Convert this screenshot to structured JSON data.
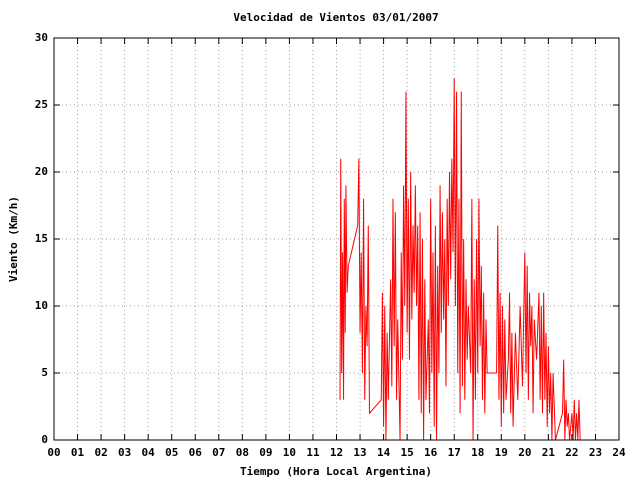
{
  "chart_data": {
    "type": "line",
    "title": "Velocidad de Vientos 03/01/2007",
    "x_label": "Tiempo (Hora Local Argentina)",
    "y_label": "Viento (Km/h)",
    "grid": true,
    "xlim": [
      0,
      24
    ],
    "xticks": [
      {
        "value": 0,
        "label": "00"
      },
      {
        "value": 1,
        "label": "01"
      },
      {
        "value": 2,
        "label": "02"
      },
      {
        "value": 3,
        "label": "03"
      },
      {
        "value": 4,
        "label": "04"
      },
      {
        "value": 5,
        "label": "05"
      },
      {
        "value": 6,
        "label": "06"
      },
      {
        "value": 7,
        "label": "07"
      },
      {
        "value": 8,
        "label": "08"
      },
      {
        "value": 9,
        "label": "09"
      },
      10,
      11,
      12,
      13,
      14,
      15,
      16,
      17,
      18,
      19,
      20,
      21,
      22,
      23,
      24
    ],
    "ylim": [
      0,
      30
    ],
    "yticks": [
      0,
      5,
      10,
      15,
      20,
      25,
      30
    ],
    "x": [
      12.15,
      12.18,
      12.22,
      12.26,
      12.3,
      12.33,
      12.37,
      12.4,
      12.45,
      12.5,
      12.9,
      12.95,
      13.0,
      13.05,
      13.1,
      13.15,
      13.2,
      13.25,
      13.3,
      13.35,
      13.4,
      13.9,
      13.95,
      14.0,
      14.05,
      14.1,
      14.15,
      14.2,
      14.3,
      14.35,
      14.4,
      14.45,
      14.5,
      14.55,
      14.6,
      14.7,
      14.75,
      14.8,
      14.85,
      14.9,
      14.95,
      15.0,
      15.05,
      15.1,
      15.15,
      15.2,
      15.25,
      15.3,
      15.35,
      15.4,
      15.45,
      15.5,
      15.55,
      15.6,
      15.65,
      15.7,
      15.75,
      15.8,
      15.9,
      15.95,
      16.0,
      16.05,
      16.1,
      16.15,
      16.2,
      16.25,
      16.3,
      16.35,
      16.4,
      16.45,
      16.5,
      16.55,
      16.6,
      16.65,
      16.7,
      16.75,
      16.8,
      16.85,
      16.9,
      16.95,
      17.0,
      17.05,
      17.1,
      17.15,
      17.2,
      17.25,
      17.3,
      17.35,
      17.4,
      17.45,
      17.5,
      17.55,
      17.6,
      17.7,
      17.75,
      17.8,
      17.85,
      17.9,
      17.95,
      18.0,
      18.05,
      18.1,
      18.15,
      18.2,
      18.25,
      18.3,
      18.35,
      18.4,
      18.8,
      18.85,
      18.9,
      18.95,
      19.0,
      19.05,
      19.1,
      19.15,
      19.2,
      19.3,
      19.35,
      19.4,
      19.45,
      19.5,
      19.6,
      19.7,
      19.8,
      19.9,
      20.0,
      20.05,
      20.1,
      20.15,
      20.2,
      20.25,
      20.3,
      20.35,
      20.4,
      20.5,
      20.6,
      20.65,
      20.7,
      20.75,
      20.8,
      20.85,
      20.9,
      20.95,
      21.0,
      21.05,
      21.1,
      21.15,
      21.2,
      21.3,
      21.6,
      21.65,
      21.7,
      21.75,
      21.8,
      21.85,
      21.9,
      22.0,
      22.05,
      22.1,
      22.15,
      22.2,
      22.25,
      22.3,
      22.35
    ],
    "series": [
      {
        "color": "#ff0000",
        "values": [
          3,
          21,
          5,
          14,
          3,
          18,
          8,
          19,
          11,
          13,
          16,
          21,
          8,
          14,
          5,
          18,
          3,
          10,
          7,
          16,
          2,
          3,
          11,
          1,
          10,
          0,
          8,
          3,
          12,
          4,
          18,
          7,
          17,
          3,
          9,
          0,
          14,
          6,
          19,
          10,
          26,
          8,
          18,
          6,
          20,
          9,
          16,
          11,
          19,
          10,
          16,
          3,
          17,
          2,
          15,
          0,
          12,
          3,
          9,
          2,
          18,
          5,
          14,
          1,
          16,
          0,
          13,
          5,
          19,
          8,
          17,
          9,
          15,
          4,
          18,
          10,
          20,
          12,
          21,
          14,
          27,
          10,
          26,
          5,
          18,
          2,
          26,
          4,
          15,
          3,
          12,
          6,
          10,
          5,
          18,
          0,
          12,
          3,
          15,
          5,
          18,
          7,
          13,
          3,
          11,
          2,
          9,
          5,
          5,
          16,
          3,
          11,
          1,
          10,
          2,
          9,
          3,
          6,
          11,
          2,
          8,
          1,
          8,
          3,
          10,
          4,
          14,
          5,
          13,
          3,
          11,
          7,
          10,
          2,
          9,
          6,
          11,
          3,
          10,
          2,
          11,
          3,
          8,
          1,
          7,
          2,
          5,
          0,
          5,
          0,
          2,
          6,
          0,
          3,
          1,
          2,
          0,
          2,
          0,
          3,
          0,
          2,
          0,
          3,
          0
        ]
      }
    ]
  }
}
